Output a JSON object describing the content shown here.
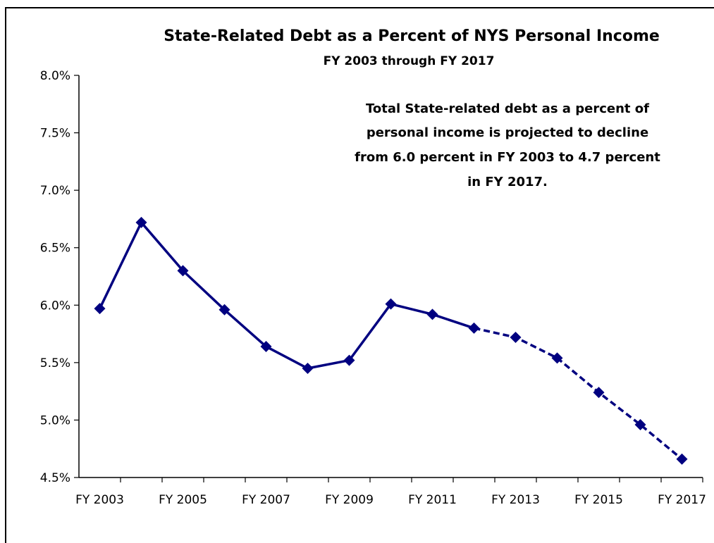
{
  "chart_data": {
    "type": "line",
    "title": "State-Related Debt as a Percent of NYS Personal Income",
    "subtitle": "FY 2003 through FY 2017",
    "annotation": [
      "Total State-related  debt  as a percent  of",
      "personal income is projected  to decline",
      "from 6.0 percent  in  FY 2003 to 4.7 percent",
      "in FY 2017."
    ],
    "x_tick_labels": [
      "FY 2003",
      "FY 2005",
      "FY 2007",
      "FY 2009",
      "FY 2011",
      "FY 2013",
      "FY 2015",
      "FY 2017"
    ],
    "y_tick_labels": [
      "4.5%",
      "5.0%",
      "5.5%",
      "6.0%",
      "6.5%",
      "7.0%",
      "7.5%",
      "8.0%"
    ],
    "ylim": [
      4.5,
      8.0
    ],
    "grid": false,
    "series": [
      {
        "style": "solid",
        "color": "#000080",
        "points": [
          {
            "x": "FY 2003",
            "y": 5.97
          },
          {
            "x": "FY 2004",
            "y": 6.72
          },
          {
            "x": "FY 2005",
            "y": 6.3
          },
          {
            "x": "FY 2006",
            "y": 5.96
          },
          {
            "x": "FY 2007",
            "y": 5.64
          },
          {
            "x": "FY 2008",
            "y": 5.45
          },
          {
            "x": "FY 2009",
            "y": 5.52
          },
          {
            "x": "FY 2010",
            "y": 6.01
          },
          {
            "x": "FY 2011",
            "y": 5.92
          },
          {
            "x": "FY 2012",
            "y": 5.8
          }
        ]
      },
      {
        "style": "dashed",
        "color": "#000080",
        "points": [
          {
            "x": "FY 2012",
            "y": 5.8
          },
          {
            "x": "FY 2013",
            "y": 5.72
          },
          {
            "x": "FY 2014",
            "y": 5.54
          },
          {
            "x": "FY 2015",
            "y": 5.24
          },
          {
            "x": "FY 2016",
            "y": 4.96
          },
          {
            "x": "FY 2017",
            "y": 4.66
          }
        ]
      }
    ]
  }
}
